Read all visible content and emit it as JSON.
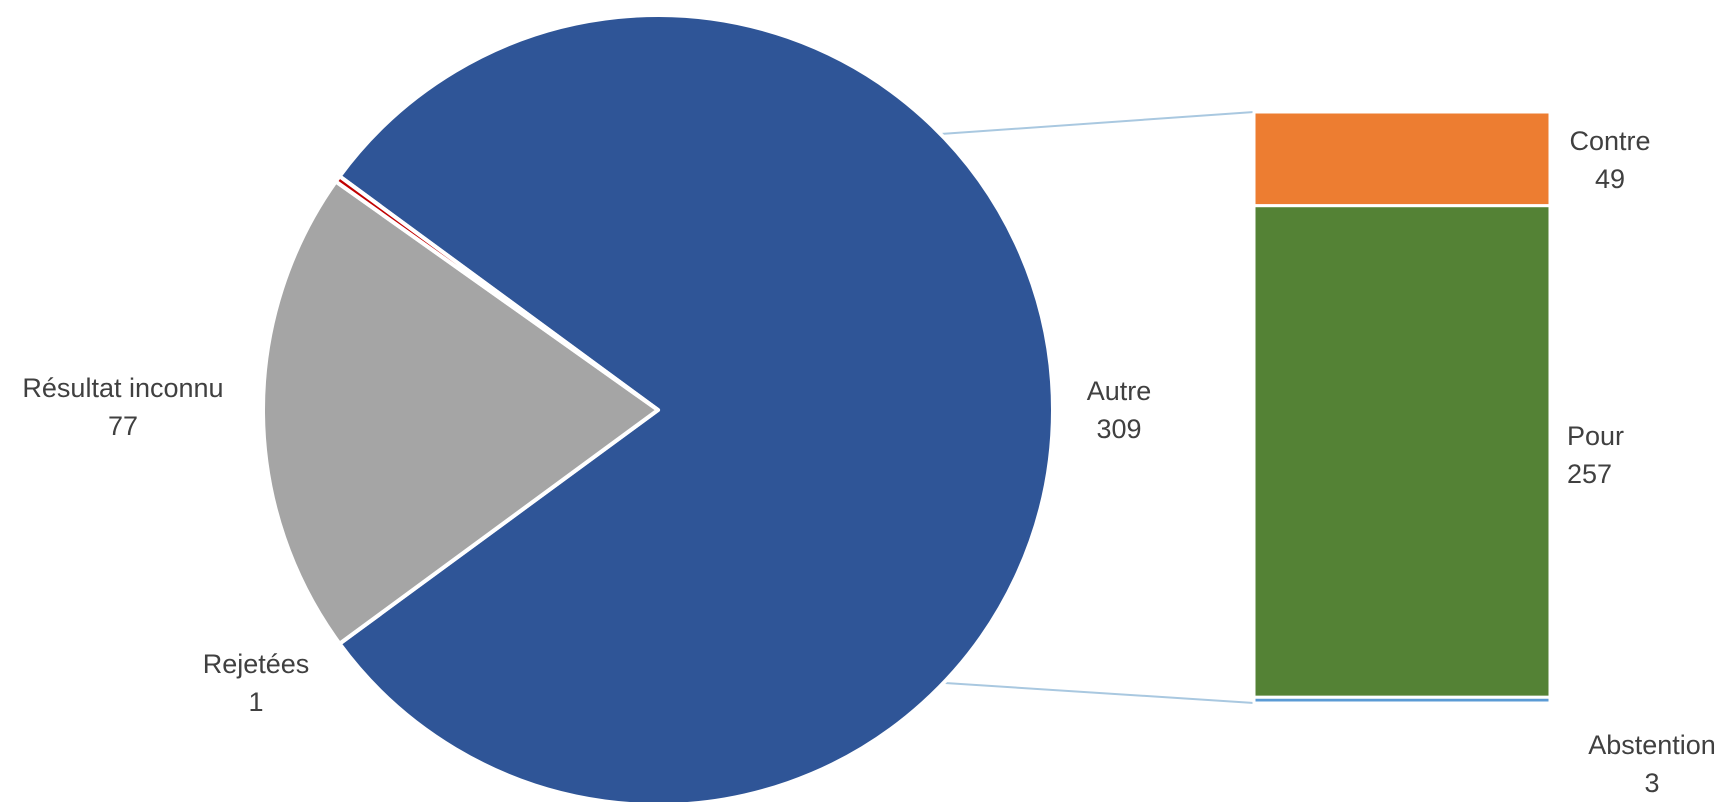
{
  "chart_data": {
    "type": "bar-of-pie",
    "pie": {
      "slices": [
        {
          "name": "Autre",
          "value": 309,
          "color": "#2F5597"
        },
        {
          "name": "Résultat inconnu",
          "value": 77,
          "color": "#A5A5A5"
        },
        {
          "name": "Rejetées",
          "value": 1,
          "color": "#C00000"
        }
      ],
      "exploded_slice": "Autre"
    },
    "bar": {
      "segments": [
        {
          "name": "Contre",
          "value": 49,
          "color": "#ED7D31"
        },
        {
          "name": "Pour",
          "value": 257,
          "color": "#548235"
        },
        {
          "name": "Abstention",
          "value": 3,
          "color": "#5B9BD5"
        }
      ]
    },
    "connector_color": "#A9C8E0"
  }
}
